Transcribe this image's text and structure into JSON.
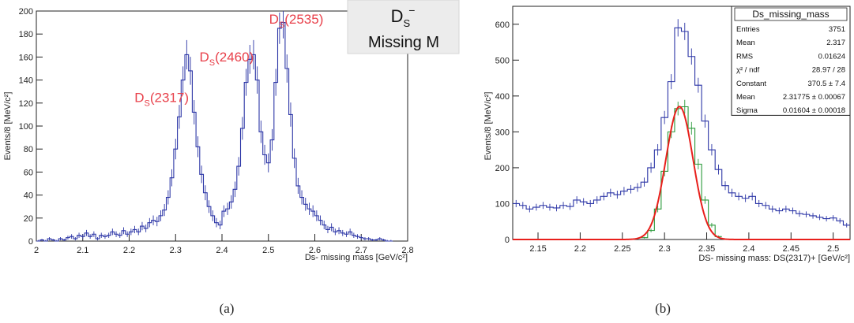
{
  "chart_data": [
    {
      "panel": "(a)",
      "type": "line",
      "xlabel": "Ds- missing mass [GeV/c²]",
      "ylabel": "Events/8 [MeV/c²]",
      "xlim": [
        2.0,
        2.8
      ],
      "ylim": [
        0,
        200
      ],
      "x_ticks": [
        2,
        2.1,
        2.2,
        2.3,
        2.4,
        2.5,
        2.6,
        2.7,
        2.8
      ],
      "y_ticks": [
        0,
        20,
        40,
        60,
        80,
        100,
        120,
        140,
        160,
        180,
        200
      ],
      "grid": false,
      "legend_box": {
        "title": "D",
        "title_sub": "S",
        "title_sup": "−",
        "subtitle": "Missing M",
        "placement": "top-right"
      },
      "annotations": [
        {
          "main": "D",
          "sub": "S",
          "rest": "(2317)",
          "x": 2.27,
          "y": 121
        },
        {
          "main": "D",
          "sub": "S",
          "rest": "(2460)",
          "x": 2.41,
          "y": 156
        },
        {
          "main": "D",
          "sub": "S",
          "rest": "(2535)",
          "x": 2.56,
          "y": 189
        }
      ],
      "series": [
        {
          "x": [
            2.0,
            2.008,
            2.016,
            2.024,
            2.032,
            2.04,
            2.048,
            2.056,
            2.064,
            2.072,
            2.08,
            2.088,
            2.096,
            2.104,
            2.112,
            2.12,
            2.128,
            2.136,
            2.144,
            2.152,
            2.16,
            2.168,
            2.176,
            2.184,
            2.192,
            2.2,
            2.208,
            2.216,
            2.224,
            2.232,
            2.24,
            2.248,
            2.256,
            2.264,
            2.272,
            2.28,
            2.288,
            2.296,
            2.304,
            2.312,
            2.32,
            2.328,
            2.336,
            2.344,
            2.352,
            2.36,
            2.368,
            2.376,
            2.384,
            2.392,
            2.4,
            2.408,
            2.416,
            2.424,
            2.432,
            2.44,
            2.448,
            2.456,
            2.464,
            2.472,
            2.48,
            2.488,
            2.496,
            2.504,
            2.512,
            2.52,
            2.528,
            2.536,
            2.544,
            2.552,
            2.56,
            2.568,
            2.576,
            2.584,
            2.592,
            2.6,
            2.608,
            2.616,
            2.624,
            2.632,
            2.64,
            2.648,
            2.656,
            2.664,
            2.672,
            2.68,
            2.688,
            2.696,
            2.704,
            2.712,
            2.72,
            2.728,
            2.736,
            2.744,
            2.752,
            2.76
          ],
          "y": [
            0,
            1,
            0,
            2,
            1,
            0,
            2,
            1,
            3,
            4,
            2,
            5,
            4,
            7,
            4,
            6,
            2,
            5,
            4,
            5,
            8,
            6,
            5,
            9,
            6,
            8,
            10,
            8,
            13,
            11,
            16,
            18,
            17,
            22,
            27,
            38,
            55,
            80,
            108,
            140,
            162,
            148,
            112,
            82,
            58,
            42,
            30,
            22,
            16,
            14,
            26,
            28,
            34,
            45,
            65,
            98,
            138,
            158,
            162,
            140,
            95,
            75,
            68,
            88,
            138,
            185,
            190,
            150,
            110,
            72,
            48,
            38,
            32,
            28,
            26,
            22,
            18,
            14,
            10,
            12,
            8,
            9,
            7,
            6,
            8,
            5,
            4,
            3,
            2,
            2,
            1,
            1,
            2,
            1,
            0,
            0
          ]
        }
      ]
    },
    {
      "panel": "(b)",
      "type": "line",
      "xlabel": "DS- missing mass: DS(2317)+ [GeV/c²]",
      "ylabel": "Events/8 [MeV/c²]",
      "xlim": [
        2.12,
        2.52
      ],
      "ylim": [
        0,
        650
      ],
      "x_ticks": [
        2.15,
        2.2,
        2.25,
        2.3,
        2.35,
        2.4,
        2.45,
        2.5
      ],
      "y_ticks": [
        0,
        100,
        200,
        300,
        400,
        500,
        600
      ],
      "grid": false,
      "stats_box": {
        "title": "Ds_missing_mass",
        "placement": "top-right",
        "rows": [
          {
            "label": "Entries",
            "value": "3751"
          },
          {
            "label": "Mean",
            "value": "2.317"
          },
          {
            "label": "RMS",
            "value": "0.01624"
          },
          {
            "label": "χ² / ndf",
            "value": "28.97 / 28"
          },
          {
            "label": "Constant",
            "value": "370.5 ± 7.4"
          },
          {
            "label": "Mean",
            "value": "2.31775 ± 0.00067"
          },
          {
            "label": "Sigma",
            "value": "0.01604 ± 0.00018"
          }
        ]
      },
      "series": [
        {
          "color": "#2b35a6",
          "x": [
            2.12,
            2.128,
            2.136,
            2.144,
            2.152,
            2.16,
            2.168,
            2.176,
            2.184,
            2.192,
            2.2,
            2.208,
            2.216,
            2.224,
            2.232,
            2.24,
            2.248,
            2.256,
            2.264,
            2.272,
            2.28,
            2.288,
            2.296,
            2.304,
            2.312,
            2.32,
            2.328,
            2.336,
            2.344,
            2.352,
            2.36,
            2.368,
            2.376,
            2.384,
            2.392,
            2.4,
            2.408,
            2.416,
            2.424,
            2.432,
            2.44,
            2.448,
            2.456,
            2.464,
            2.472,
            2.48,
            2.488,
            2.496,
            2.504,
            2.512
          ],
          "y": [
            100,
            95,
            85,
            90,
            95,
            90,
            88,
            95,
            92,
            110,
            105,
            100,
            110,
            120,
            130,
            125,
            135,
            140,
            145,
            160,
            200,
            250,
            340,
            440,
            590,
            580,
            510,
            430,
            330,
            250,
            195,
            150,
            130,
            120,
            115,
            120,
            100,
            95,
            85,
            80,
            85,
            80,
            72,
            70,
            66,
            62,
            58,
            60,
            52,
            40
          ]
        },
        {
          "color": "#2a9a3a",
          "x": [
            2.272,
            2.28,
            2.288,
            2.296,
            2.304,
            2.312,
            2.32,
            2.328,
            2.336,
            2.344,
            2.352,
            2.36
          ],
          "y": [
            5,
            25,
            85,
            190,
            300,
            365,
            370,
            310,
            210,
            110,
            40,
            8
          ]
        }
      ],
      "fit": {
        "color": "#e8201c",
        "constant": 370.5,
        "mean": 2.31775,
        "sigma": 0.01604
      }
    }
  ],
  "captions": {
    "a": "(a)",
    "b": "(b)"
  }
}
